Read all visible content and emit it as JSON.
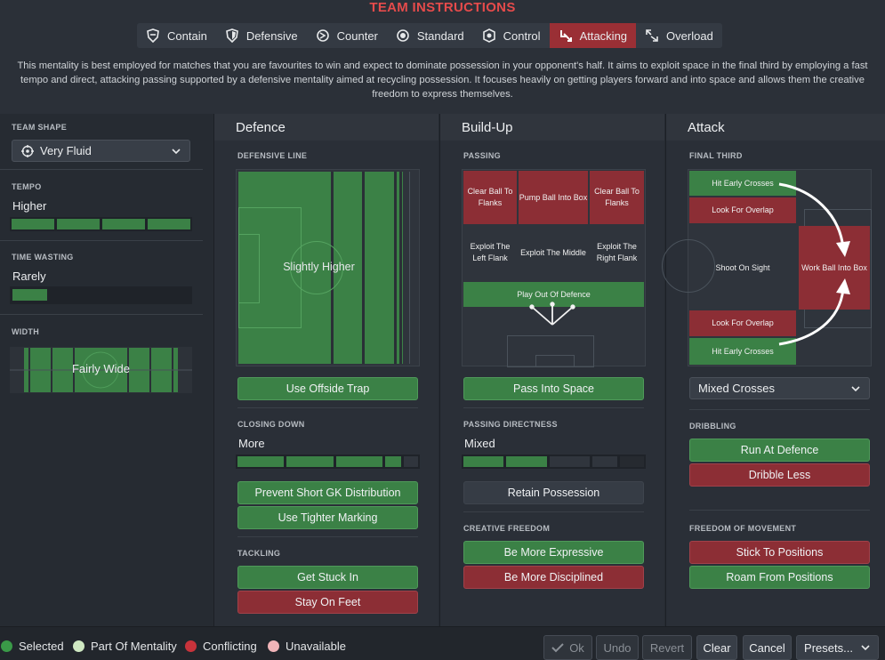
{
  "title": "TEAM INSTRUCTIONS",
  "tabs": [
    {
      "label": "Contain",
      "icon": "contain-icon"
    },
    {
      "label": "Defensive",
      "icon": "shield-icon"
    },
    {
      "label": "Counter",
      "icon": "counter-icon"
    },
    {
      "label": "Standard",
      "icon": "standard-icon"
    },
    {
      "label": "Control",
      "icon": "control-icon"
    },
    {
      "label": "Attacking",
      "icon": "attacking-icon",
      "active": true
    },
    {
      "label": "Overload",
      "icon": "overload-icon"
    }
  ],
  "description": "This mentality is best employed for matches that you are favourites to win and expect to dominate possession in your opponent's half. It aims to exploit space in the final third by employing a fast tempo and direct, attacking passing supported by a defensive mentality aimed at recycling possession. It focuses heavily on getting players forward and into space and allows them the creative freedom to express themselves.",
  "left": {
    "team_shape": {
      "label": "TEAM SHAPE",
      "value": "Very Fluid"
    },
    "tempo": {
      "label": "TEMPO",
      "value": "Higher",
      "level": 1.0
    },
    "time_wasting": {
      "label": "TIME WASTING",
      "value": "Rarely",
      "level": 0.2
    },
    "width": {
      "label": "WIDTH",
      "value": "Fairly Wide"
    }
  },
  "defence": {
    "title": "Defence",
    "line_label": "DEFENSIVE LINE",
    "line_value": "Slightly Higher",
    "offside_button": "Use Offside Trap",
    "closing_label": "CLOSING DOWN",
    "closing_value": "More",
    "closing_level": 0.8,
    "prevent_button": "Prevent Short GK Distribution",
    "tighter_button": "Use Tighter Marking",
    "tackling_label": "TACKLING",
    "tackling_buttons": [
      "Get Stuck In",
      "Stay On Feet"
    ]
  },
  "buildup": {
    "title": "Build-Up",
    "passing_label": "PASSING",
    "grid": [
      [
        "Clear Ball To Flanks",
        "Pump Ball Into Box",
        "Clear Ball To Flanks"
      ],
      [
        "Exploit The Left Flank",
        "Exploit The Middle",
        "Exploit The Right Flank"
      ]
    ],
    "play_out": "Play Out Of Defence",
    "space_button": "Pass Into Space",
    "directness_label": "PASSING DIRECTNESS",
    "directness_value": "Mixed",
    "directness_level": 0.4,
    "retain_button": "Retain Possession",
    "creative_label": "CREATIVE FREEDOM",
    "creative_buttons": [
      "Be More Expressive",
      "Be More Disciplined"
    ]
  },
  "attack": {
    "title": "Attack",
    "final_label": "FINAL THIRD",
    "cells": [
      "Hit Early Crosses",
      "Look For Overlap",
      "Shoot On Sight",
      "Work Ball Into Box",
      "Look For Overlap",
      "Hit Early Crosses"
    ],
    "crosses_value": "Mixed Crosses",
    "dribbling_label": "DRIBBLING",
    "dribbling_buttons": [
      "Run At Defence",
      "Dribble Less"
    ],
    "freedom_label": "FREEDOM OF MOVEMENT",
    "freedom_buttons": [
      "Stick To Positions",
      "Roam From Positions"
    ]
  },
  "legend": [
    {
      "label": "Selected",
      "color": "#3a9a48"
    },
    {
      "label": "Part Of Mentality",
      "color": "#cfe8c2"
    },
    {
      "label": "Conflicting",
      "color": "#c8333b"
    },
    {
      "label": "Unavailable",
      "color": "#f0b4b8"
    }
  ],
  "footer": {
    "ok": "Ok",
    "undo": "Undo",
    "revert": "Revert",
    "clear": "Clear",
    "cancel": "Cancel",
    "presets": "Presets..."
  }
}
